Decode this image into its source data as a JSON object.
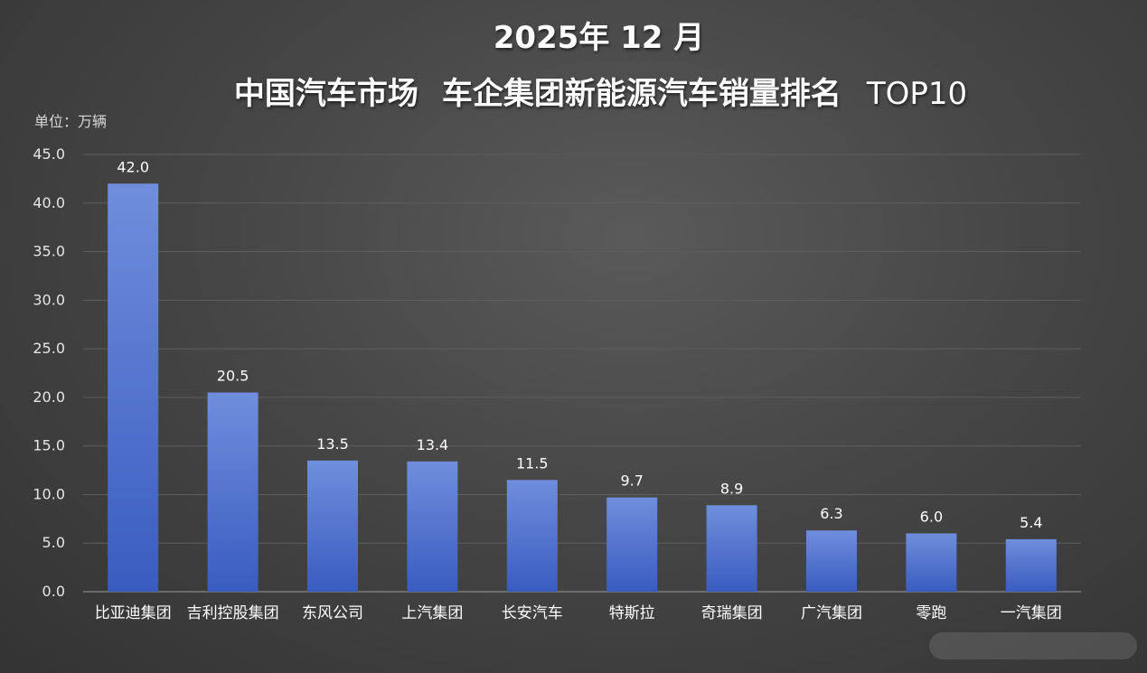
{
  "title_line1": "2025年 12 月",
  "title_line2_a": "中国汽车市场",
  "title_line2_b": "车企集团新能源汽车销量排名",
  "title_line2_c": "TOP10",
  "unit_label": "单位：万辆",
  "colors": {
    "bar_top": "#6f8edc",
    "bar_bottom": "#3a5cc0",
    "grid": "#5e5e5e",
    "axis": "#9a9a9a",
    "text": "#ffffff"
  },
  "chart_data": {
    "type": "bar",
    "categories": [
      "比亚迪集团",
      "吉利控股集团",
      "东风公司",
      "上汽集团",
      "长安汽车",
      "特斯拉",
      "奇瑞集团",
      "广汽集团",
      "零跑",
      "一汽集团"
    ],
    "values": [
      42.0,
      20.5,
      13.5,
      13.4,
      11.5,
      9.7,
      8.9,
      6.3,
      6.0,
      5.4
    ],
    "data_labels": [
      "42.0",
      "20.5",
      "13.5",
      "13.4",
      "11.5",
      "9.7",
      "8.9",
      "6.3",
      "6.0",
      "5.4"
    ],
    "ylim": [
      0,
      45
    ],
    "yticks": [
      "0.0",
      "5.0",
      "10.0",
      "15.0",
      "20.0",
      "25.0",
      "30.0",
      "35.0",
      "40.0",
      "45.0"
    ],
    "ytick_values": [
      0,
      5,
      10,
      15,
      20,
      25,
      30,
      35,
      40,
      45
    ],
    "grid": true,
    "legend": "none"
  }
}
